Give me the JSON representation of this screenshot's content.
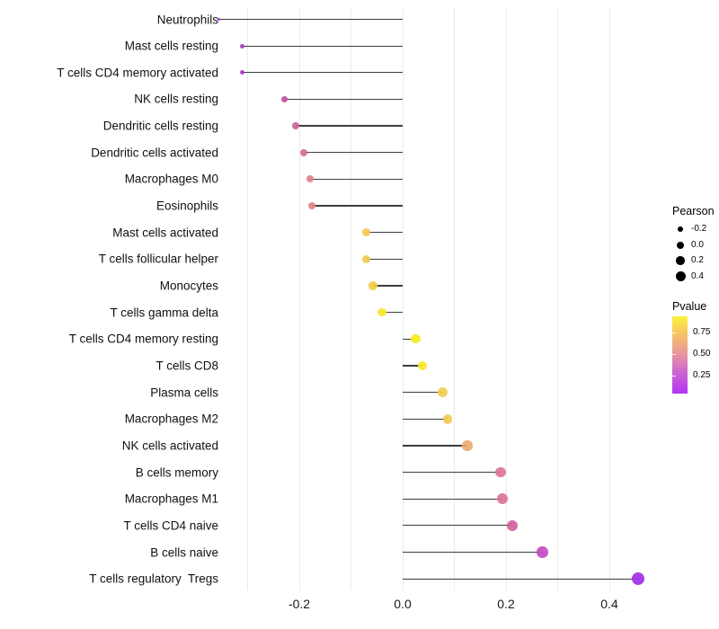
{
  "chart_data": {
    "type": "lollipop",
    "title": "",
    "xlabel": "",
    "ylabel": "",
    "xlim": [
      -0.39,
      0.49
    ],
    "grid": true,
    "grid_tick_step": 0.1,
    "grid_ticks": [
      -0.3,
      -0.2,
      -0.1,
      0.0,
      0.1,
      0.2,
      0.3,
      0.4
    ],
    "x_ticks": [
      {
        "value": -0.2,
        "label": "-0.2"
      },
      {
        "value": 0.0,
        "label": "0.0"
      },
      {
        "value": 0.2,
        "label": "0.2"
      },
      {
        "value": 0.4,
        "label": "0.4"
      }
    ],
    "points": [
      {
        "label": "Neutrophils",
        "pearson": -0.356,
        "pvalue": 0.06,
        "color": "#A32CE0"
      },
      {
        "label": "Mast cells resting",
        "pearson": -0.311,
        "pvalue": 0.13,
        "color": "#A83BCB"
      },
      {
        "label": "T cells CD4 memory activated",
        "pearson": -0.311,
        "pvalue": 0.13,
        "color": "#A83BCB"
      },
      {
        "label": "NK cells resting",
        "pearson": -0.228,
        "pvalue": 0.27,
        "color": "#C04FA5"
      },
      {
        "label": "Dendritic cells resting",
        "pearson": -0.207,
        "pvalue": 0.33,
        "color": "#CE6697"
      },
      {
        "label": "Dendritic cells activated",
        "pearson": -0.191,
        "pvalue": 0.38,
        "color": "#D5718F"
      },
      {
        "label": "Macrophages M0",
        "pearson": -0.179,
        "pvalue": 0.44,
        "color": "#DE818C"
      },
      {
        "label": "Eosinophils",
        "pearson": -0.176,
        "pvalue": 0.45,
        "color": "#E08489"
      },
      {
        "label": "Mast cells activated",
        "pearson": -0.07,
        "pvalue": 0.72,
        "color": "#EFC94F"
      },
      {
        "label": "T cells follicular helper",
        "pearson": -0.07,
        "pvalue": 0.72,
        "color": "#EFC94F"
      },
      {
        "label": "Monocytes",
        "pearson": -0.057,
        "pvalue": 0.75,
        "color": "#F0CE46"
      },
      {
        "label": "T cells gamma delta",
        "pearson": -0.04,
        "pvalue": 0.87,
        "color": "#F5E72B"
      },
      {
        "label": "T cells CD4 memory resting",
        "pearson": 0.025,
        "pvalue": 0.92,
        "color": "#F8EB1F"
      },
      {
        "label": "T cells CD8",
        "pearson": 0.038,
        "pvalue": 0.9,
        "color": "#F7E826"
      },
      {
        "label": "Plasma cells",
        "pearson": 0.078,
        "pvalue": 0.73,
        "color": "#F2CD51"
      },
      {
        "label": "Macrophages M2",
        "pearson": 0.087,
        "pvalue": 0.72,
        "color": "#F1CA55"
      },
      {
        "label": "NK cells activated",
        "pearson": 0.125,
        "pvalue": 0.62,
        "color": "#EDAD72"
      },
      {
        "label": "B cells memory",
        "pearson": 0.19,
        "pvalue": 0.39,
        "color": "#DD7596"
      },
      {
        "label": "Macrophages M1",
        "pearson": 0.193,
        "pvalue": 0.39,
        "color": "#DB7397"
      },
      {
        "label": "T cells CD4 naive",
        "pearson": 0.212,
        "pvalue": 0.33,
        "color": "#D2619F"
      },
      {
        "label": "B cells naive",
        "pearson": 0.27,
        "pvalue": 0.2,
        "color": "#C44BC0"
      },
      {
        "label": "T cells regulatory  Tregs",
        "pearson": 0.455,
        "pvalue": 0.03,
        "color": "#A12CE8"
      }
    ],
    "legend": {
      "size": {
        "title": "Pearson",
        "items": [
          {
            "label": "-0.2",
            "diameter": 6.5
          },
          {
            "label": "0.0",
            "diameter": 8
          },
          {
            "label": "0.2",
            "diameter": 9.5
          },
          {
            "label": "0.4",
            "diameter": 11
          }
        ],
        "dot_color": "#000000"
      },
      "color": {
        "title": "Pvalue",
        "gradient_top_to_bottom": [
          "#FBF139",
          "#F4C06B",
          "#E694A3",
          "#CA60D4",
          "#B233F2"
        ],
        "ticks": [
          {
            "label": "0.75",
            "y_offset": 18
          },
          {
            "label": "0.50",
            "y_offset": 41.5
          },
          {
            "label": "0.25",
            "y_offset": 65.5
          }
        ]
      }
    },
    "style": {
      "gridline_color": "#ebebeb",
      "stick_color": "#3d3d3d",
      "size_domain": [
        -0.36,
        0.46
      ]
    }
  }
}
